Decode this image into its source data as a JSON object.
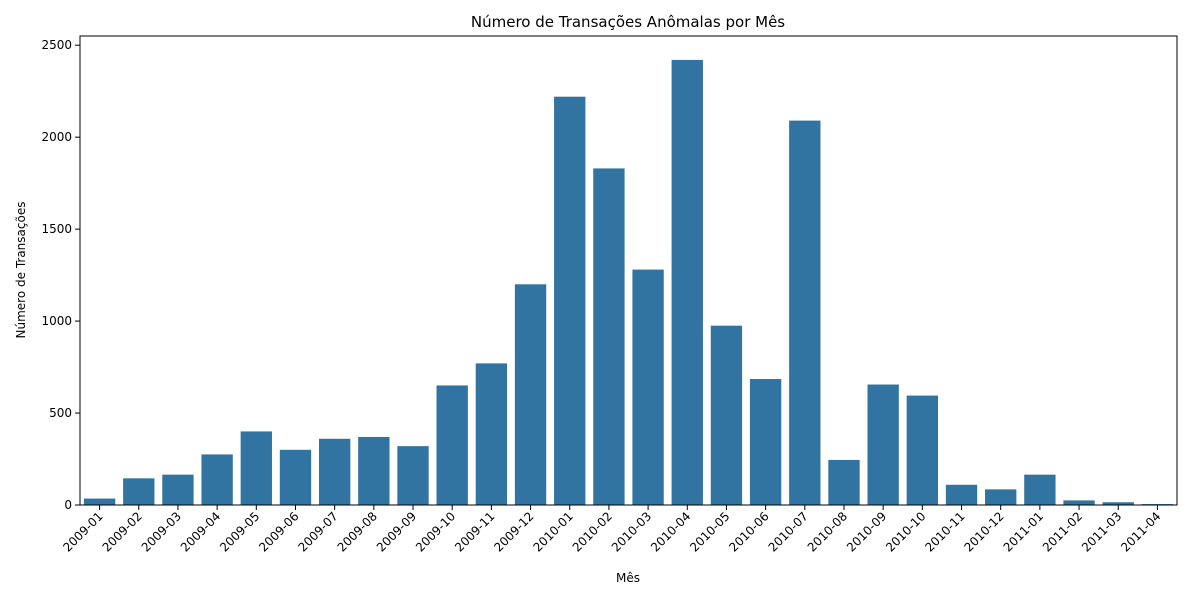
{
  "chart_data": {
    "type": "bar",
    "title": "Número de Transações Anômalas por Mês",
    "xlabel": "Mês",
    "ylabel": "Número de Transações",
    "ylim": [
      0,
      2550
    ],
    "yticks": [
      0,
      500,
      1000,
      1500,
      2000,
      2500
    ],
    "grid": false,
    "bar_color": "#3274a1",
    "categories": [
      "2009-01",
      "2009-02",
      "2009-03",
      "2009-04",
      "2009-05",
      "2009-06",
      "2009-07",
      "2009-08",
      "2009-09",
      "2009-10",
      "2009-11",
      "2009-12",
      "2010-01",
      "2010-02",
      "2010-03",
      "2010-04",
      "2010-05",
      "2010-06",
      "2010-07",
      "2010-08",
      "2010-09",
      "2010-10",
      "2010-11",
      "2010-12",
      "2011-01",
      "2011-02",
      "2011-03",
      "2011-04"
    ],
    "values": [
      35,
      145,
      165,
      275,
      400,
      300,
      360,
      370,
      320,
      650,
      770,
      1200,
      2220,
      1830,
      1280,
      2420,
      975,
      685,
      2090,
      245,
      655,
      595,
      110,
      85,
      165,
      25,
      15,
      5
    ]
  }
}
